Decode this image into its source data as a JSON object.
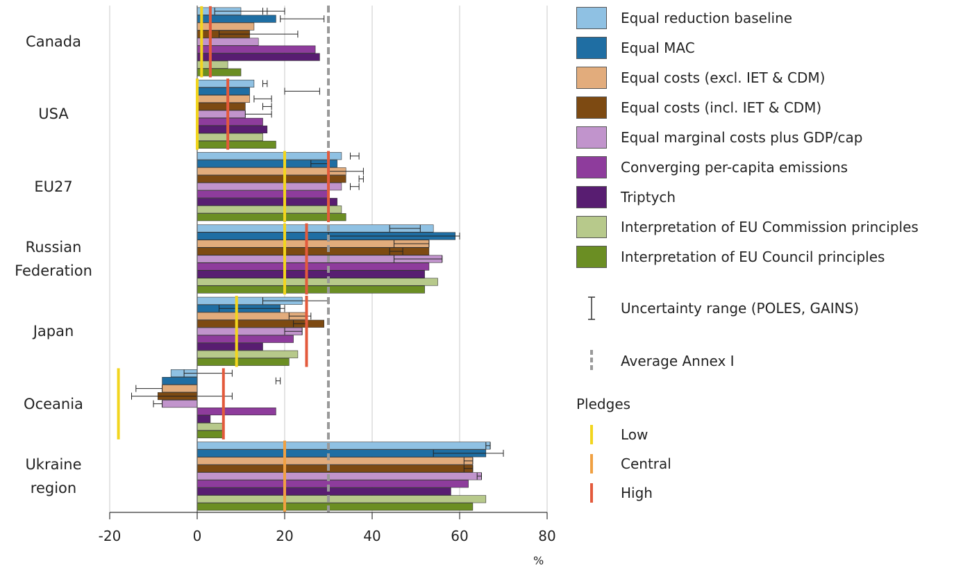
{
  "chart_data": {
    "type": "bar",
    "orientation": "horizontal",
    "x_axis": {
      "min": -20,
      "max": 80,
      "ticks": [
        -20,
        0,
        20,
        40,
        60,
        80
      ],
      "unit": "%"
    },
    "grid": true,
    "regions": [
      {
        "label": "Canada",
        "values": [
          10,
          18,
          13,
          12,
          14,
          27,
          28,
          7,
          10
        ],
        "errors": [
          [
            4,
            20
          ],
          [
            19,
            29
          ],
          null,
          [
            5,
            23
          ],
          null,
          null,
          null,
          null,
          null
        ],
        "pledges": {
          "low": 1,
          "high": 3
        },
        "tick_markers": [
          [
            15,
            16
          ],
          null,
          null,
          null,
          null,
          null,
          null,
          null,
          null
        ]
      },
      {
        "label": "USA",
        "values": [
          13,
          12,
          12,
          11,
          11,
          15,
          16,
          15,
          18
        ],
        "errors": [
          [
            15,
            16
          ],
          [
            20,
            28
          ],
          [
            13,
            17
          ],
          [
            15,
            17
          ],
          [
            11,
            17
          ],
          null,
          null,
          null,
          null
        ],
        "pledges": {
          "low": 0,
          "high": 7
        },
        "tick_markers": [
          null,
          null,
          null,
          null,
          null,
          null,
          null,
          null,
          null
        ]
      },
      {
        "label": "EU27",
        "values": [
          33,
          32,
          34,
          34,
          33,
          30,
          32,
          33,
          34
        ],
        "errors": [
          [
            35,
            37
          ],
          [
            26,
            30
          ],
          [
            30,
            38
          ],
          [
            37,
            38
          ],
          [
            35,
            37
          ],
          null,
          null,
          null,
          null
        ],
        "pledges": {
          "low": 20,
          "high": 30
        },
        "tick_markers": [
          null,
          null,
          null,
          null,
          null,
          null,
          null,
          null,
          null
        ]
      },
      {
        "label": "Russian Federation",
        "values": [
          54,
          59,
          53,
          53,
          56,
          53,
          52,
          55,
          52
        ],
        "errors": [
          [
            44,
            51
          ],
          [
            30,
            60
          ],
          [
            45,
            53
          ],
          [
            44,
            47
          ],
          [
            45,
            56
          ],
          null,
          null,
          null,
          null
        ],
        "pledges": {
          "low": 20,
          "high": 25
        },
        "tick_markers": [
          null,
          null,
          null,
          null,
          null,
          null,
          null,
          null,
          null
        ]
      },
      {
        "label": "Japan",
        "values": [
          24,
          19,
          25,
          29,
          24,
          22,
          15,
          23,
          21
        ],
        "errors": [
          [
            15,
            30
          ],
          [
            5,
            20
          ],
          [
            21,
            26
          ],
          [
            22,
            25
          ],
          [
            20,
            24
          ],
          null,
          null,
          null,
          null
        ],
        "pledges": {
          "low": 9,
          "high": 25
        },
        "tick_markers": [
          null,
          null,
          null,
          null,
          null,
          null,
          null,
          null,
          null
        ]
      },
      {
        "label": "Oceania",
        "values": [
          -6,
          -8,
          -8,
          -9,
          -8,
          18,
          3,
          6,
          6
        ],
        "errors": [
          [
            -3,
            8
          ],
          [
            18,
            19
          ],
          [
            -14,
            -8
          ],
          [
            -15,
            8
          ],
          [
            -10,
            -8
          ],
          null,
          null,
          null,
          null
        ],
        "pledges": {
          "low": -18,
          "high": 6
        },
        "tick_markers": [
          null,
          null,
          null,
          null,
          null,
          null,
          null,
          null,
          null
        ]
      },
      {
        "label": "Ukraine region",
        "values": [
          67,
          66,
          63,
          63,
          65,
          62,
          58,
          66,
          63
        ],
        "errors": [
          [
            66,
            67
          ],
          [
            54,
            70
          ],
          [
            61,
            63
          ],
          [
            61,
            63
          ],
          [
            64,
            65
          ],
          null,
          null,
          null,
          null
        ],
        "pledges": {
          "central": 20
        },
        "tick_markers": [
          null,
          null,
          null,
          null,
          null,
          null,
          null,
          null,
          null
        ]
      }
    ],
    "average_annex_i": 30,
    "series": [
      {
        "name": "Equal reduction baseline",
        "color": "#8fc1e3"
      },
      {
        "name": "Equal MAC",
        "color": "#1f6ea3"
      },
      {
        "name": "Equal costs (excl. IET & CDM)",
        "color": "#e2ac7c"
      },
      {
        "name": "Equal costs (incl. IET & CDM)",
        "color": "#7d4a12"
      },
      {
        "name": "Equal marginal costs plus GDP/cap",
        "color": "#c194cc"
      },
      {
        "name": "Converging per-capita emissions",
        "color": "#8e3c9c"
      },
      {
        "name": "Triptych",
        "color": "#581d71"
      },
      {
        "name": "Interpretation of EU Commission principles",
        "color": "#b7c98b"
      },
      {
        "name": "Interpretation of EU Council principles",
        "color": "#6b8e23"
      }
    ],
    "legend_extra": {
      "uncertainty_label": "Uncertainty range (POLES, GAINS)",
      "average_label": "Average Annex I",
      "pledges_title": "Pledges",
      "pledges": [
        {
          "name": "Low",
          "color": "#f2d51e"
        },
        {
          "name": "Central",
          "color": "#f0a042"
        },
        {
          "name": "High",
          "color": "#e35a3c"
        }
      ]
    },
    "legend_position": "right"
  }
}
